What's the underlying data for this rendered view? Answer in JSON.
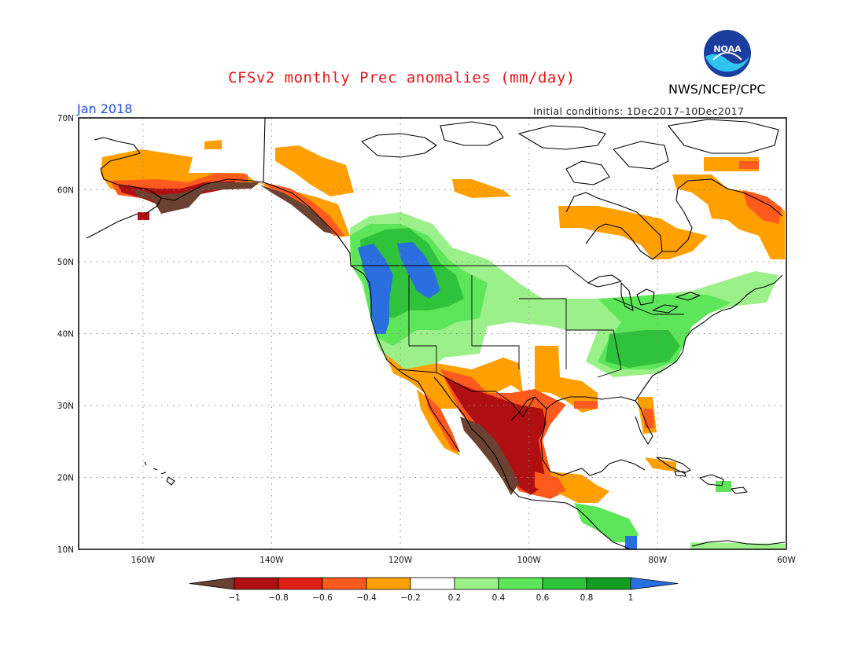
{
  "header": {
    "title": "CFSv2 monthly Prec anomalies (mm/day)",
    "agency": "NWS/NCEP/CPC",
    "month": "Jan 2018",
    "initial_conditions": "Initial conditions: 1Dec2017–10Dec2017",
    "logo_text": "NOAA"
  },
  "map": {
    "projection": "lat-lon",
    "lat_labels": [
      "70N",
      "60N",
      "50N",
      "40N",
      "30N",
      "20N",
      "10N"
    ],
    "lon_labels": [
      "160W",
      "140W",
      "120W",
      "100W",
      "80W",
      "60W"
    ]
  },
  "colorbar": {
    "tick_labels": [
      "−1",
      "−0.8",
      "−0.6",
      "−0.4",
      "−0.2",
      "0.2",
      "0.4",
      "0.6",
      "0.8",
      "1"
    ],
    "colors": {
      "lt_-1": "#6b4131",
      "-1_-0.8": "#b00f12",
      "-0.8_-0.6": "#e01e12",
      "-0.6_-0.4": "#ff5a1e",
      "-0.4_-0.2": "#ff9f00",
      "-0.2_0.2": "#ffffff",
      "0.2_0.4": "#9cf08a",
      "0.4_0.6": "#5ee65a",
      "0.6_0.8": "#2fc23b",
      "0.8_1": "#139e21",
      "gt_1": "#2a6fdf"
    }
  }
}
